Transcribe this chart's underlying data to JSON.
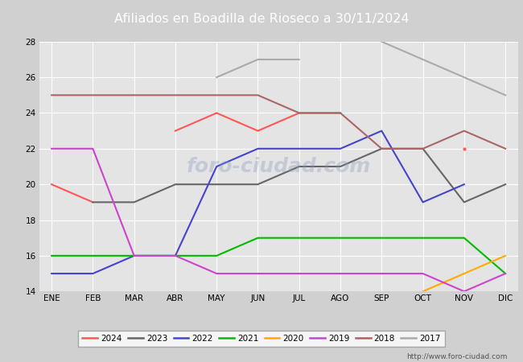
{
  "title": "Afiliados en Boadilla de Rioseco a 30/11/2024",
  "months": [
    "ENE",
    "FEB",
    "MAR",
    "ABR",
    "MAY",
    "JUN",
    "JUL",
    "AGO",
    "SEP",
    "OCT",
    "NOV",
    "DIC"
  ],
  "ylim": [
    14,
    28
  ],
  "yticks": [
    14,
    16,
    18,
    20,
    22,
    24,
    26,
    28
  ],
  "series": {
    "2024": {
      "data": [
        20,
        19,
        null,
        23,
        24,
        23,
        24,
        24,
        null,
        null,
        22,
        null
      ],
      "color": "#ff5555"
    },
    "2023": {
      "data": [
        null,
        19,
        19,
        20,
        20,
        20,
        21,
        21,
        22,
        22,
        19,
        20
      ],
      "color": "#666666"
    },
    "2022": {
      "data": [
        15,
        15,
        16,
        16,
        21,
        22,
        22,
        22,
        23,
        19,
        20,
        null
      ],
      "color": "#4444cc"
    },
    "2021": {
      "data": [
        16,
        16,
        16,
        16,
        16,
        17,
        17,
        17,
        17,
        17,
        17,
        15
      ],
      "color": "#00bb00"
    },
    "2020": {
      "data": [
        null,
        null,
        null,
        null,
        null,
        null,
        null,
        null,
        null,
        14,
        15,
        16
      ],
      "color": "#ffaa00"
    },
    "2019": {
      "data": [
        22,
        22,
        16,
        16,
        15,
        15,
        15,
        15,
        15,
        15,
        14,
        15
      ],
      "color": "#cc44cc"
    },
    "2018": {
      "data": [
        25,
        25,
        25,
        25,
        25,
        25,
        24,
        24,
        22,
        22,
        23,
        22
      ],
      "color": "#aa6666"
    },
    "2017": {
      "data": [
        null,
        null,
        null,
        null,
        26,
        27,
        27,
        null,
        28,
        27,
        26,
        25
      ],
      "color": "#aaaaaa"
    }
  },
  "legend_order": [
    "2024",
    "2023",
    "2022",
    "2021",
    "2020",
    "2019",
    "2018",
    "2017"
  ],
  "footer_url": "http://www.foro-ciudad.com",
  "header_bg": "#5588cc",
  "plot_bg": "#e4e4e4",
  "fig_bg": "#d0d0d0"
}
